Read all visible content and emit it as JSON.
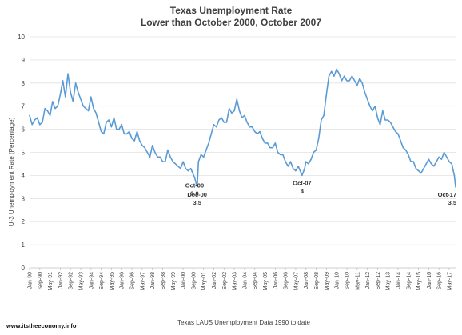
{
  "chart_data": {
    "type": "line",
    "title_line1": "Texas Unemployment Rate",
    "title_line2": "Lower than October 2000, October 2007",
    "xlabel": "Texas LAUS Unemployment Data 1990 to date",
    "ylabel": "U-3 Unemployment Rate (Percentage)",
    "ylim": [
      0,
      10
    ],
    "y_ticks": [
      "0",
      "1",
      "2",
      "3",
      "4",
      "5",
      "6",
      "7",
      "8",
      "9",
      "10"
    ],
    "grid": true,
    "legend": "none",
    "color": "#5b9bd5",
    "x_tick_labels": [
      "Jan-90",
      "Sep-90",
      "May-91",
      "Jan-92",
      "Sep-92",
      "May-93",
      "Jan-94",
      "Sep-94",
      "May-95",
      "Jan-96",
      "Sep-96",
      "May-97",
      "Jan-98",
      "Sep-98",
      "May-99",
      "Jan-00",
      "Sep-00",
      "May-01",
      "Jan-02",
      "Sep-02",
      "May-03",
      "Jan-04",
      "Sep-04",
      "May-05",
      "Jan-06",
      "Sep-06",
      "May-07",
      "Jan-08",
      "Sep-08",
      "May-09",
      "Jan-10",
      "Sep-10",
      "May-11",
      "Jan-12",
      "Sep-12",
      "May-13",
      "Jan-14",
      "Sep-14",
      "May-15",
      "Jan-16",
      "Sep-16",
      "May-17"
    ],
    "x_start": "Jan-90",
    "x_end": "Oct-17",
    "series": [
      {
        "points": [
          [
            "Jan-90",
            6.6
          ],
          [
            "Mar-90",
            6.2
          ],
          [
            "May-90",
            6.4
          ],
          [
            "Jul-90",
            6.5
          ],
          [
            "Sep-90",
            6.2
          ],
          [
            "Nov-90",
            6.3
          ],
          [
            "Jan-91",
            6.9
          ],
          [
            "Mar-91",
            6.8
          ],
          [
            "May-91",
            6.6
          ],
          [
            "Jul-91",
            7.2
          ],
          [
            "Sep-91",
            6.9
          ],
          [
            "Nov-91",
            7.0
          ],
          [
            "Jan-92",
            7.5
          ],
          [
            "Mar-92",
            8.1
          ],
          [
            "May-92",
            7.4
          ],
          [
            "Jul-92",
            8.4
          ],
          [
            "Sep-92",
            7.6
          ],
          [
            "Nov-92",
            7.2
          ],
          [
            "Jan-93",
            8.0
          ],
          [
            "Mar-93",
            7.6
          ],
          [
            "May-93",
            7.3
          ],
          [
            "Jul-93",
            7.0
          ],
          [
            "Sep-93",
            6.9
          ],
          [
            "Nov-93",
            6.8
          ],
          [
            "Jan-94",
            7.4
          ],
          [
            "Mar-94",
            6.9
          ],
          [
            "May-94",
            6.7
          ],
          [
            "Jul-94",
            6.3
          ],
          [
            "Sep-94",
            5.9
          ],
          [
            "Nov-94",
            5.8
          ],
          [
            "Jan-95",
            6.3
          ],
          [
            "Mar-95",
            6.4
          ],
          [
            "May-95",
            6.1
          ],
          [
            "Jul-95",
            6.5
          ],
          [
            "Sep-95",
            6.0
          ],
          [
            "Nov-95",
            6.0
          ],
          [
            "Jan-96",
            6.2
          ],
          [
            "Mar-96",
            5.8
          ],
          [
            "May-96",
            5.8
          ],
          [
            "Jul-96",
            5.9
          ],
          [
            "Sep-96",
            5.6
          ],
          [
            "Nov-96",
            5.5
          ],
          [
            "Jan-97",
            5.9
          ],
          [
            "Mar-97",
            5.5
          ],
          [
            "May-97",
            5.3
          ],
          [
            "Jul-97",
            5.2
          ],
          [
            "Sep-97",
            5.0
          ],
          [
            "Nov-97",
            4.8
          ],
          [
            "Jan-98",
            5.3
          ],
          [
            "Mar-98",
            5.0
          ],
          [
            "May-98",
            4.8
          ],
          [
            "Jul-98",
            4.8
          ],
          [
            "Sep-98",
            4.6
          ],
          [
            "Nov-98",
            4.6
          ],
          [
            "Jan-99",
            5.1
          ],
          [
            "Mar-99",
            4.8
          ],
          [
            "May-99",
            4.6
          ],
          [
            "Jul-99",
            4.5
          ],
          [
            "Sep-99",
            4.4
          ],
          [
            "Nov-99",
            4.3
          ],
          [
            "Jan-00",
            4.6
          ],
          [
            "Mar-00",
            4.3
          ],
          [
            "May-00",
            4.2
          ],
          [
            "Jul-00",
            4.3
          ],
          [
            "Oct-00",
            3.9
          ],
          [
            "Dec-00",
            3.5
          ],
          [
            "Jan-01",
            4.6
          ],
          [
            "Mar-01",
            4.9
          ],
          [
            "May-01",
            4.8
          ],
          [
            "Jul-01",
            5.1
          ],
          [
            "Sep-01",
            5.4
          ],
          [
            "Nov-01",
            5.8
          ],
          [
            "Jan-02",
            6.2
          ],
          [
            "Mar-02",
            6.1
          ],
          [
            "May-02",
            6.4
          ],
          [
            "Jul-02",
            6.5
          ],
          [
            "Sep-02",
            6.3
          ],
          [
            "Nov-02",
            6.3
          ],
          [
            "Jan-03",
            6.9
          ],
          [
            "Mar-03",
            6.7
          ],
          [
            "May-03",
            6.8
          ],
          [
            "Jul-03",
            7.3
          ],
          [
            "Sep-03",
            6.8
          ],
          [
            "Nov-03",
            6.5
          ],
          [
            "Jan-04",
            6.6
          ],
          [
            "Mar-04",
            6.3
          ],
          [
            "May-04",
            6.1
          ],
          [
            "Jul-04",
            6.1
          ],
          [
            "Sep-04",
            5.9
          ],
          [
            "Nov-04",
            5.8
          ],
          [
            "Jan-05",
            5.9
          ],
          [
            "Mar-05",
            5.6
          ],
          [
            "May-05",
            5.4
          ],
          [
            "Jul-05",
            5.4
          ],
          [
            "Sep-05",
            5.2
          ],
          [
            "Nov-05",
            5.2
          ],
          [
            "Jan-06",
            5.4
          ],
          [
            "Mar-06",
            5.0
          ],
          [
            "May-06",
            4.9
          ],
          [
            "Jul-06",
            4.9
          ],
          [
            "Sep-06",
            4.6
          ],
          [
            "Nov-06",
            4.4
          ],
          [
            "Jan-07",
            4.6
          ],
          [
            "Mar-07",
            4.3
          ],
          [
            "May-07",
            4.2
          ],
          [
            "Jul-07",
            4.4
          ],
          [
            "Oct-07",
            4.0
          ],
          [
            "Dec-07",
            4.3
          ],
          [
            "Jan-08",
            4.6
          ],
          [
            "Mar-08",
            4.5
          ],
          [
            "May-08",
            4.7
          ],
          [
            "Jul-08",
            5.0
          ],
          [
            "Sep-08",
            5.1
          ],
          [
            "Nov-08",
            5.6
          ],
          [
            "Jan-09",
            6.4
          ],
          [
            "Mar-09",
            6.6
          ],
          [
            "May-09",
            7.5
          ],
          [
            "Jul-09",
            8.3
          ],
          [
            "Sep-09",
            8.5
          ],
          [
            "Nov-09",
            8.3
          ],
          [
            "Jan-10",
            8.6
          ],
          [
            "Mar-10",
            8.4
          ],
          [
            "May-10",
            8.1
          ],
          [
            "Jul-10",
            8.3
          ],
          [
            "Sep-10",
            8.1
          ],
          [
            "Nov-10",
            8.1
          ],
          [
            "Jan-11",
            8.3
          ],
          [
            "Mar-11",
            8.1
          ],
          [
            "May-11",
            7.9
          ],
          [
            "Jul-11",
            8.2
          ],
          [
            "Sep-11",
            8.0
          ],
          [
            "Nov-11",
            7.6
          ],
          [
            "Jan-12",
            7.3
          ],
          [
            "Mar-12",
            7.0
          ],
          [
            "May-12",
            6.8
          ],
          [
            "Jul-12",
            7.0
          ],
          [
            "Sep-12",
            6.5
          ],
          [
            "Nov-12",
            6.2
          ],
          [
            "Jan-13",
            6.8
          ],
          [
            "Mar-13",
            6.4
          ],
          [
            "May-13",
            6.4
          ],
          [
            "Jul-13",
            6.3
          ],
          [
            "Sep-13",
            6.1
          ],
          [
            "Nov-13",
            5.9
          ],
          [
            "Jan-14",
            5.8
          ],
          [
            "Mar-14",
            5.5
          ],
          [
            "May-14",
            5.2
          ],
          [
            "Jul-14",
            5.1
          ],
          [
            "Sep-14",
            4.9
          ],
          [
            "Nov-14",
            4.6
          ],
          [
            "Jan-15",
            4.6
          ],
          [
            "Mar-15",
            4.3
          ],
          [
            "May-15",
            4.2
          ],
          [
            "Jul-15",
            4.1
          ],
          [
            "Sep-15",
            4.3
          ],
          [
            "Nov-15",
            4.5
          ],
          [
            "Jan-16",
            4.7
          ],
          [
            "Mar-16",
            4.5
          ],
          [
            "May-16",
            4.4
          ],
          [
            "Jul-16",
            4.6
          ],
          [
            "Sep-16",
            4.8
          ],
          [
            "Nov-16",
            4.7
          ],
          [
            "Jan-17",
            5.0
          ],
          [
            "Mar-17",
            4.8
          ],
          [
            "May-17",
            4.6
          ],
          [
            "Jul-17",
            4.5
          ],
          [
            "Sep-17",
            4.0
          ],
          [
            "Oct-17",
            3.5
          ]
        ]
      }
    ],
    "annotations": [
      {
        "label": "Oct-00",
        "value": "3.9",
        "x": "Oct-00",
        "y": 3.9
      },
      {
        "label": "Dec-00",
        "value": "3.5",
        "x": "Dec-00",
        "y": 3.5
      },
      {
        "label": "Oct-07",
        "value": "4",
        "x": "Oct-07",
        "y": 4.0
      },
      {
        "label": "Oct-17",
        "value": "3.5",
        "x": "Oct-17",
        "y": 3.5
      }
    ]
  },
  "footer": {
    "source": "www.itstheeconomy.info"
  }
}
